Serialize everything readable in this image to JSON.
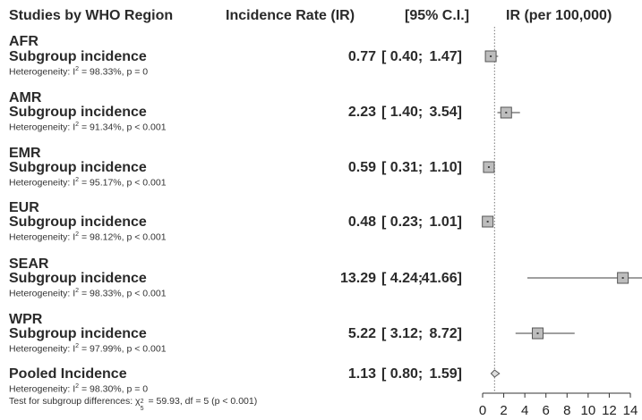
{
  "headers": {
    "studies": "Studies by WHO Region",
    "ir": "Incidence Rate (IR)",
    "ci": "[95% C.I.]",
    "axis": "IR (per 100,000)"
  },
  "rows": [
    {
      "region": "AFR",
      "label": "Subgroup incidence",
      "het_prefix": "Heterogeneity: I",
      "het_sup": "2",
      "het_rest": " = 98.33%, p = 0",
      "ir": "0.77",
      "ci_lo": "[ 0.40;",
      "ci_hi": "1.47]"
    },
    {
      "region": "AMR",
      "label": "Subgroup incidence",
      "het_prefix": "Heterogeneity: I",
      "het_sup": "2",
      "het_rest": " = 91.34%, p < 0.001",
      "ir": "2.23",
      "ci_lo": "[ 1.40;",
      "ci_hi": "3.54]"
    },
    {
      "region": "EMR",
      "label": "Subgroup incidence",
      "het_prefix": "Heterogeneity: I",
      "het_sup": "2",
      "het_rest": " = 95.17%, p < 0.001",
      "ir": "0.59",
      "ci_lo": "[ 0.31;",
      "ci_hi": "1.10]"
    },
    {
      "region": "EUR",
      "label": "Subgroup incidence",
      "het_prefix": "Heterogeneity: I",
      "het_sup": "2",
      "het_rest": " = 98.12%, p < 0.001",
      "ir": "0.48",
      "ci_lo": "[ 0.23;",
      "ci_hi": "1.01]"
    },
    {
      "region": "SEAR",
      "label": "Subgroup incidence",
      "het_prefix": "Heterogeneity: I",
      "het_sup": "2",
      "het_rest": " = 98.33%, p < 0.001",
      "ir": "13.29",
      "ci_lo": "[ 4.24;",
      "ci_hi": "41.66]"
    },
    {
      "region": "WPR",
      "label": "Subgroup incidence",
      "het_prefix": "Heterogeneity: I",
      "het_sup": "2",
      "het_rest": " = 97.99%, p < 0.001",
      "ir": "5.22",
      "ci_lo": "[ 3.12;",
      "ci_hi": "8.72]"
    }
  ],
  "pooled": {
    "label": "Pooled Incidence",
    "ir": "1.13",
    "ci_lo": "[ 0.80;",
    "ci_hi": "1.59]",
    "het_prefix": "Heterogeneity: I",
    "het_sup": "2",
    "het_rest": " = 98.30%, p = 0",
    "test_prefix": "Test for subgroup differences: χ",
    "test_sup": "2",
    "test_sub": "5",
    "test_rest": " = 59.93, df = 5 (p < 0.001)"
  },
  "chart_data": {
    "type": "forest",
    "xlim": [
      0,
      14
    ],
    "ticks": [
      0,
      2,
      4,
      6,
      8,
      10,
      12,
      14
    ],
    "tick_labels": [
      "0",
      "2",
      "4",
      "6",
      "8",
      "10",
      "12",
      "14"
    ],
    "reference_line": 1.13,
    "series": [
      {
        "name": "AFR",
        "estimate": 0.77,
        "lower": 0.4,
        "upper": 1.47
      },
      {
        "name": "AMR",
        "estimate": 2.23,
        "lower": 1.4,
        "upper": 3.54
      },
      {
        "name": "EMR",
        "estimate": 0.59,
        "lower": 0.31,
        "upper": 1.1
      },
      {
        "name": "EUR",
        "estimate": 0.48,
        "lower": 0.23,
        "upper": 1.01
      },
      {
        "name": "SEAR",
        "estimate": 13.29,
        "lower": 4.24,
        "upper": 41.66
      },
      {
        "name": "WPR",
        "estimate": 5.22,
        "lower": 3.12,
        "upper": 8.72
      }
    ],
    "pooled": {
      "estimate": 1.13,
      "lower": 0.8,
      "upper": 1.59
    },
    "colors": {
      "box": "#bdbdbd",
      "box_stroke": "#555555",
      "line": "#666666"
    }
  }
}
